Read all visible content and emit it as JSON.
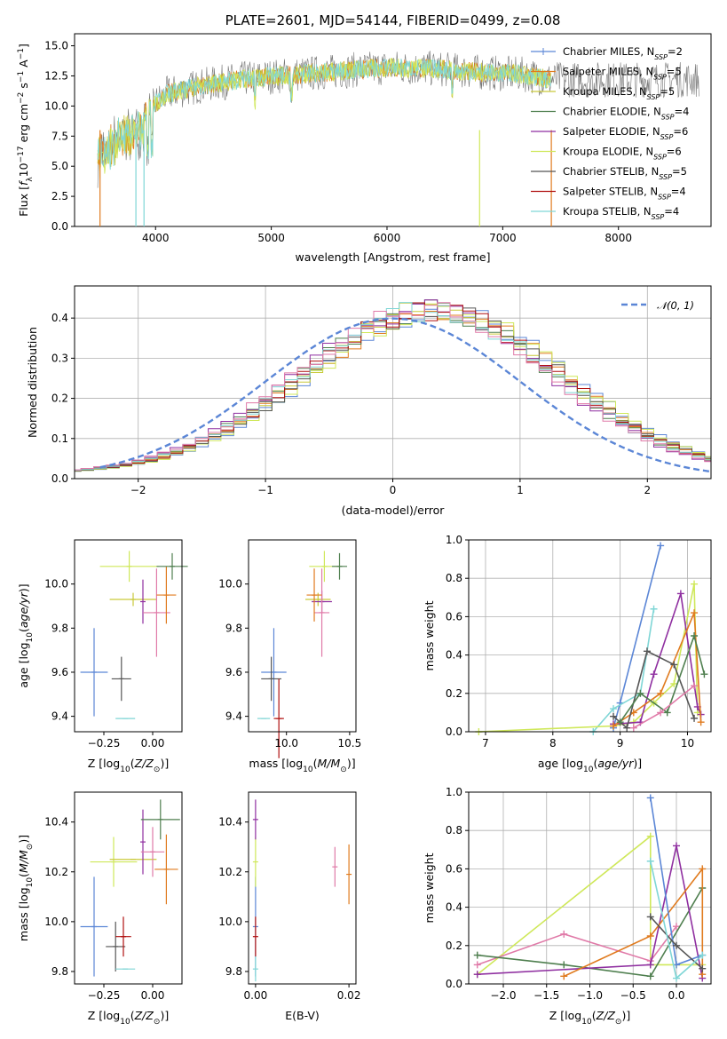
{
  "colors": {
    "Chabrier MILES": "#5b86d6",
    "Salpeter MILES": "#e07b1f",
    "Kroupa MILES": "#c9c93a",
    "Chabrier ELODIE": "#4f7f4f",
    "Salpeter ELODIE": "#8f2fa0",
    "Kroupa ELODIE": "#cfe85a",
    "Chabrier STELIB": "#555555",
    "Salpeter STELIB": "#b01010",
    "Kroupa STELIB": "#7fd6d6",
    "extra": "#e07aa8",
    "normal": "#5b86d6"
  },
  "chart_data": [
    {
      "id": "spectrum",
      "type": "line",
      "title": "PLATE=2601, MJD=54144, FIBERID=0499, z=0.08",
      "xlabel": "wavelength [Angstrom, rest frame]",
      "ylabel": "Flux [f_λ 10^-17 erg cm^-2 s^-1 A^-1]",
      "xlim": [
        3300,
        8800
      ],
      "ylim": [
        0,
        16
      ],
      "xticks": [
        4000,
        5000,
        6000,
        7000,
        8000
      ],
      "yticks": [
        "0.0",
        "2.5",
        "5.0",
        "7.5",
        "10.0",
        "12.5",
        "15.0"
      ],
      "continuum": [
        [
          3500,
          7
        ],
        [
          3700,
          8.5
        ],
        [
          3900,
          9.5
        ],
        [
          4100,
          11
        ],
        [
          4400,
          11.7
        ],
        [
          4800,
          12.3
        ],
        [
          5200,
          12.6
        ],
        [
          5600,
          12.9
        ],
        [
          6000,
          13.2
        ],
        [
          6400,
          13.1
        ],
        [
          6800,
          12.8
        ],
        [
          7200,
          12.6
        ],
        [
          7400,
          12.2
        ]
      ],
      "legend": [
        {
          "label": "Chabrier MILES, N",
          "sub": "SSP",
          "value": "=2"
        },
        {
          "label": "Salpeter MILES, N",
          "sub": "SSP",
          "value": "=5"
        },
        {
          "label": "Kroupa MILES, N",
          "sub": "SSP",
          "value": "=5"
        },
        {
          "label": "Chabrier ELODIE, N",
          "sub": "SSP",
          "value": "=4"
        },
        {
          "label": "Salpeter ELODIE, N",
          "sub": "SSP",
          "value": "=6"
        },
        {
          "label": "Kroupa ELODIE, N",
          "sub": "SSP",
          "value": "=6"
        },
        {
          "label": "Chabrier STELIB, N",
          "sub": "SSP",
          "value": "=5"
        },
        {
          "label": "Salpeter STELIB, N",
          "sub": "SSP",
          "value": "=4"
        },
        {
          "label": "Kroupa STELIB, N",
          "sub": "SSP",
          "value": "=4"
        }
      ]
    },
    {
      "id": "residuals",
      "type": "histogram",
      "xlabel": "(data-model)/error",
      "ylabel": "Normed distribution",
      "xlim": [
        -2.5,
        2.5
      ],
      "ylim": [
        0,
        0.48
      ],
      "xticks": [
        "−2",
        "−1",
        "0",
        "1",
        "2"
      ],
      "yticks": [
        "0.0",
        "0.1",
        "0.2",
        "0.3",
        "0.4"
      ],
      "grid": true,
      "legend": {
        "label": "𝒩(0, 1)",
        "position": "top-right"
      },
      "bin_width": 0.1
    },
    {
      "id": "age-Z",
      "type": "errorbar",
      "xlabel": "Z [log10(Z/Z⊙)]",
      "ylabel": "age  [log10(age/yr)]",
      "xlim": [
        -0.4,
        0.15
      ],
      "ylim": [
        9.33,
        10.2
      ],
      "xticks": [
        "−0.25",
        "0.00"
      ],
      "yticks": [
        "9.4",
        "9.6",
        "9.8",
        "10.0"
      ],
      "points": [
        {
          "x": -0.3,
          "y": 9.6,
          "xerr": 0.07,
          "yerr": 0.2,
          "c": "Chabrier MILES"
        },
        {
          "x": -0.16,
          "y": 9.57,
          "xerr": 0.05,
          "yerr": 0.1,
          "c": "Chabrier STELIB"
        },
        {
          "x": -0.14,
          "y": 9.39,
          "xerr": 0.05,
          "yerr": 0.0,
          "c": "Kroupa STELIB"
        },
        {
          "x": -0.12,
          "y": 10.08,
          "xerr": 0.15,
          "yerr": 0.07,
          "c": "Kroupa ELODIE"
        },
        {
          "x": -0.1,
          "y": 9.93,
          "xerr": 0.12,
          "yerr": 0.03,
          "c": "Kroupa MILES"
        },
        {
          "x": -0.05,
          "y": 9.92,
          "xerr": 0.0,
          "yerr": 0.1,
          "c": "Salpeter ELODIE"
        },
        {
          "x": 0.02,
          "y": 9.87,
          "xerr": 0.07,
          "yerr": 0.2,
          "c": "extra"
        },
        {
          "x": 0.07,
          "y": 9.95,
          "xerr": 0.05,
          "yerr": 0.13,
          "c": "Salpeter MILES"
        },
        {
          "x": 0.1,
          "y": 10.08,
          "xerr": 0.08,
          "yerr": 0.06,
          "c": "Chabrier ELODIE"
        }
      ]
    },
    {
      "id": "age-mass",
      "type": "errorbar",
      "xlabel": "mass [log10(M/M⊙)]",
      "ylabel": "",
      "xlim": [
        9.7,
        10.55
      ],
      "ylim": [
        9.33,
        10.2
      ],
      "xticks": [
        "10.0",
        "10.5"
      ],
      "yticks": [
        "9.4",
        "9.6",
        "9.8",
        "10.0"
      ],
      "points": [
        {
          "x": 9.9,
          "y": 9.6,
          "xerr": 0.1,
          "yerr": 0.2,
          "c": "Chabrier MILES"
        },
        {
          "x": 9.88,
          "y": 9.57,
          "xerr": 0.08,
          "yerr": 0.1,
          "c": "Chabrier STELIB"
        },
        {
          "x": 9.82,
          "y": 9.39,
          "xerr": 0.05,
          "yerr": 0.0,
          "c": "Kroupa STELIB"
        },
        {
          "x": 9.94,
          "y": 9.39,
          "xerr": 0.04,
          "yerr": 0.18,
          "c": "Salpeter STELIB"
        },
        {
          "x": 10.3,
          "y": 10.08,
          "xerr": 0.12,
          "yerr": 0.07,
          "c": "Kroupa ELODIE"
        },
        {
          "x": 10.25,
          "y": 9.93,
          "xerr": 0.1,
          "yerr": 0.03,
          "c": "Kroupa MILES"
        },
        {
          "x": 10.28,
          "y": 9.92,
          "xerr": 0.08,
          "yerr": 0.05,
          "c": "Salpeter ELODIE"
        },
        {
          "x": 10.28,
          "y": 9.87,
          "xerr": 0.06,
          "yerr": 0.2,
          "c": "extra"
        },
        {
          "x": 10.22,
          "y": 9.95,
          "xerr": 0.06,
          "yerr": 0.12,
          "c": "Salpeter MILES"
        },
        {
          "x": 10.42,
          "y": 10.08,
          "xerr": 0.06,
          "yerr": 0.06,
          "c": "Chabrier ELODIE"
        }
      ]
    },
    {
      "id": "weight-age",
      "type": "line",
      "xlabel": "age  [log10(age/yr)]",
      "ylabel": "mass weight",
      "xlim": [
        6.75,
        10.35
      ],
      "ylim": [
        0,
        1.0
      ],
      "xticks": [
        "7",
        "8",
        "9",
        "10"
      ],
      "yticks": [
        "0.0",
        "0.2",
        "0.4",
        "0.6",
        "0.8",
        "1.0"
      ],
      "grid": true,
      "series": [
        {
          "c": "Chabrier MILES",
          "x": [
            8.9,
            9.0,
            9.6
          ],
          "y": [
            0.02,
            0.15,
            0.97
          ]
        },
        {
          "c": "Kroupa STELIB",
          "x": [
            8.6,
            8.9,
            9.3,
            9.5
          ],
          "y": [
            0.0,
            0.12,
            0.2,
            0.64
          ]
        },
        {
          "c": "Kroupa ELODIE",
          "x": [
            6.9,
            8.9,
            9.2,
            9.5,
            9.8,
            10.1,
            10.15
          ],
          "y": [
            0.0,
            0.03,
            0.05,
            0.15,
            0.25,
            0.77,
            0.1
          ]
        },
        {
          "c": "Salpeter ELODIE",
          "x": [
            8.9,
            9.3,
            9.5,
            9.9,
            10.15,
            10.2
          ],
          "y": [
            0.04,
            0.05,
            0.3,
            0.72,
            0.13,
            0.09
          ]
        },
        {
          "c": "Salpeter MILES",
          "x": [
            8.9,
            9.2,
            9.6,
            10.1,
            10.2
          ],
          "y": [
            0.03,
            0.1,
            0.2,
            0.62,
            0.05
          ]
        },
        {
          "c": "Chabrier STELIB",
          "x": [
            8.9,
            9.1,
            9.4,
            9.8,
            10.1
          ],
          "y": [
            0.08,
            0.02,
            0.42,
            0.35,
            0.07
          ]
        },
        {
          "c": "Chabrier ELODIE",
          "x": [
            9.0,
            9.3,
            9.7,
            10.1,
            10.25
          ],
          "y": [
            0.05,
            0.2,
            0.1,
            0.5,
            0.3
          ]
        },
        {
          "c": "extra",
          "x": [
            9.2,
            9.6,
            10.1
          ],
          "y": [
            0.02,
            0.1,
            0.24
          ]
        }
      ]
    },
    {
      "id": "mass-Z",
      "type": "errorbar",
      "xlabel": "Z [log10(Z/Z⊙)]",
      "ylabel": "mass [log10(M/M⊙)]",
      "xlim": [
        -0.4,
        0.15
      ],
      "ylim": [
        9.75,
        10.52
      ],
      "xticks": [
        "−0.25",
        "0.00"
      ],
      "yticks": [
        "9.8",
        "10.0",
        "10.2",
        "10.4"
      ],
      "points": [
        {
          "x": -0.3,
          "y": 9.98,
          "xerr": 0.07,
          "yerr": 0.2,
          "c": "Chabrier MILES"
        },
        {
          "x": -0.19,
          "y": 9.9,
          "xerr": 0.05,
          "yerr": 0.1,
          "c": "Chabrier STELIB"
        },
        {
          "x": -0.14,
          "y": 9.81,
          "xerr": 0.05,
          "yerr": 0.0,
          "c": "Kroupa STELIB"
        },
        {
          "x": -0.15,
          "y": 9.94,
          "xerr": 0.04,
          "yerr": 0.08,
          "c": "Salpeter STELIB"
        },
        {
          "x": -0.2,
          "y": 10.24,
          "xerr": 0.12,
          "yerr": 0.1,
          "c": "Kroupa ELODIE"
        },
        {
          "x": -0.1,
          "y": 10.25,
          "xerr": 0.12,
          "yerr": 0.0,
          "c": "Kroupa MILES"
        },
        {
          "x": -0.05,
          "y": 10.32,
          "xerr": 0.0,
          "yerr": 0.13,
          "c": "Salpeter ELODIE"
        },
        {
          "x": 0.0,
          "y": 10.28,
          "xerr": 0.06,
          "yerr": 0.1,
          "c": "extra"
        },
        {
          "x": 0.07,
          "y": 10.21,
          "xerr": 0.06,
          "yerr": 0.14,
          "c": "Salpeter MILES"
        },
        {
          "x": 0.04,
          "y": 10.41,
          "xerr": 0.1,
          "yerr": 0.08,
          "c": "Chabrier ELODIE"
        }
      ]
    },
    {
      "id": "mass-EBV",
      "type": "errorbar",
      "xlabel": "E(B-V)",
      "ylabel": "",
      "xlim": [
        -0.0015,
        0.0215
      ],
      "ylim": [
        9.75,
        10.52
      ],
      "xticks": [
        "0.00",
        "0.02"
      ],
      "yticks": [
        "9.8",
        "10.0",
        "10.2",
        "10.4"
      ],
      "points": [
        {
          "x": 0.0,
          "y": 9.98,
          "xerr": 0,
          "yerr": 0.2,
          "c": "Chabrier MILES"
        },
        {
          "x": 0.0,
          "y": 9.94,
          "xerr": 0,
          "yerr": 0.08,
          "c": "Salpeter STELIB"
        },
        {
          "x": 0.0,
          "y": 10.24,
          "xerr": 0,
          "yerr": 0.1,
          "c": "Kroupa ELODIE"
        },
        {
          "x": 0.0,
          "y": 10.41,
          "xerr": 0,
          "yerr": 0.08,
          "c": "Salpeter ELODIE"
        },
        {
          "x": 0.0,
          "y": 9.81,
          "xerr": 0,
          "yerr": 0.05,
          "c": "Kroupa STELIB"
        },
        {
          "x": 0.017,
          "y": 10.22,
          "xerr": 0,
          "yerr": 0.08,
          "c": "extra"
        },
        {
          "x": 0.02,
          "y": 10.19,
          "xerr": 0,
          "yerr": 0.12,
          "c": "Salpeter MILES"
        }
      ]
    },
    {
      "id": "weight-Z",
      "type": "line",
      "xlabel": "Z [log10(Z/Z⊙)]",
      "ylabel": "mass weight",
      "xlim": [
        -2.4,
        0.4
      ],
      "ylim": [
        0,
        1.0
      ],
      "xticks": [
        "−2.0",
        "−1.5",
        "−1.0",
        "−0.5",
        "0.0"
      ],
      "yticks": [
        "0.0",
        "0.2",
        "0.4",
        "0.6",
        "0.8",
        "1.0"
      ],
      "grid": true,
      "series": [
        {
          "c": "Kroupa ELODIE",
          "x": [
            -2.3,
            -0.3,
            -0.3,
            0.0,
            0.3
          ],
          "y": [
            0.05,
            0.77,
            0.1,
            0.1,
            0.1
          ]
        },
        {
          "c": "extra",
          "x": [
            -2.3,
            -1.3,
            -0.3,
            0.0
          ],
          "y": [
            0.1,
            0.26,
            0.12,
            0.3
          ]
        },
        {
          "c": "Chabrier ELODIE",
          "x": [
            -2.3,
            -1.3,
            -0.3,
            0.3
          ],
          "y": [
            0.15,
            0.1,
            0.04,
            0.5
          ]
        },
        {
          "c": "Salpeter ELODIE",
          "x": [
            -2.3,
            -0.3,
            0.0,
            0.3
          ],
          "y": [
            0.05,
            0.1,
            0.72,
            0.03
          ]
        },
        {
          "c": "Salpeter MILES",
          "x": [
            -1.3,
            -0.3,
            0.3,
            0.3
          ],
          "y": [
            0.04,
            0.25,
            0.6,
            0.05
          ]
        },
        {
          "c": "Chabrier MILES",
          "x": [
            -0.3,
            0.0,
            0.3
          ],
          "y": [
            0.97,
            0.1,
            0.15
          ]
        },
        {
          "c": "Chabrier STELIB",
          "x": [
            -0.3,
            0.0,
            0.3
          ],
          "y": [
            0.35,
            0.2,
            0.08
          ]
        },
        {
          "c": "Kroupa STELIB",
          "x": [
            -0.3,
            0.0,
            0.3
          ],
          "y": [
            0.64,
            0.03,
            0.15
          ]
        }
      ]
    }
  ]
}
